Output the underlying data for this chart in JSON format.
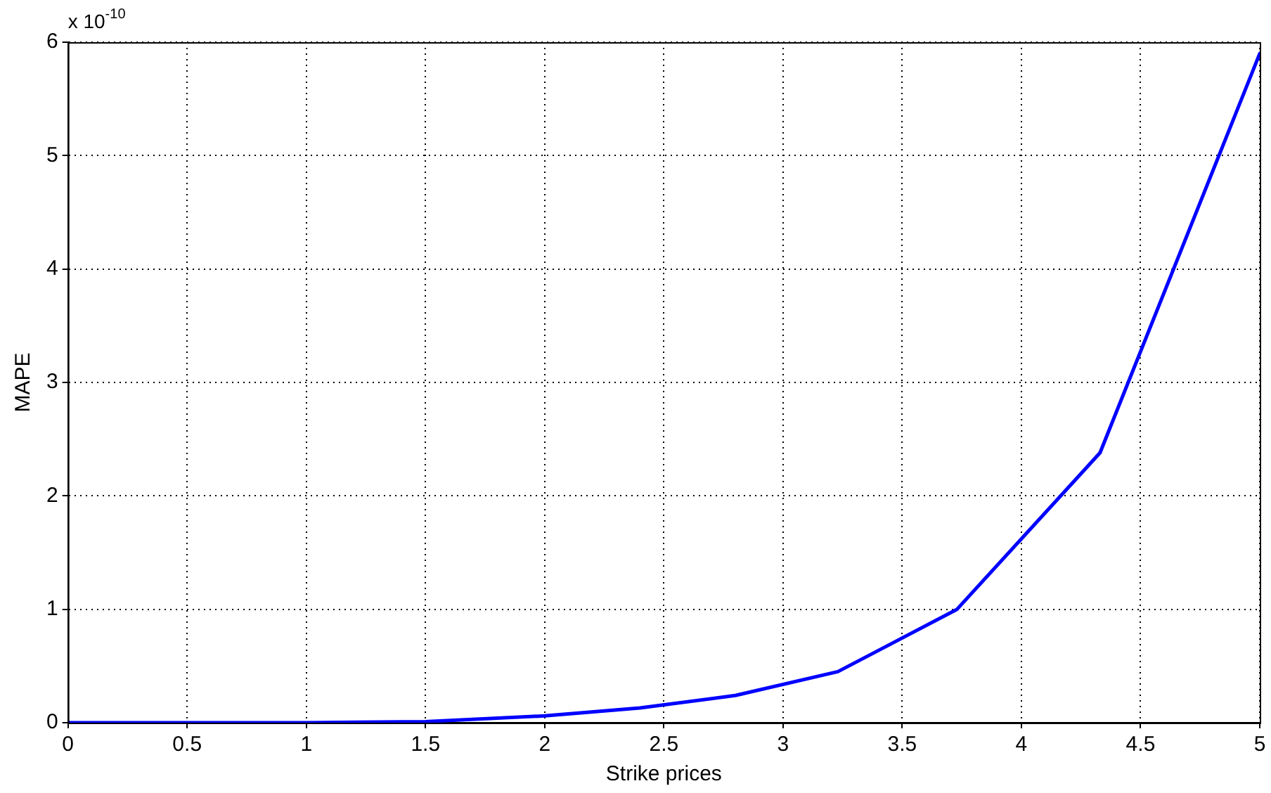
{
  "chart_data": {
    "type": "line",
    "xlabel": "Strike prices",
    "ylabel": "MAPE",
    "annotations": [
      "x 10$^{-10}$"
    ],
    "x": [
      0,
      0.5,
      1,
      1.5,
      2,
      2.4,
      2.8,
      3.23,
      3.73,
      4.33,
      5
    ],
    "series": [
      {
        "color": "#0000ff",
        "values": [
          0,
          0,
          0,
          0.01,
          0.06,
          0.13,
          0.24,
          0.45,
          1.0,
          2.38,
          5.9
        ]
      }
    ],
    "xlim": [
      0,
      5
    ],
    "xticks": [
      0,
      0.5,
      1,
      1.5,
      2,
      2.5,
      3,
      3.5,
      4,
      4.5,
      5
    ],
    "ylim": [
      0,
      6
    ],
    "yticks": [
      0,
      1,
      2,
      3,
      4,
      5,
      6
    ],
    "grid": true,
    "legend": false,
    "marker": "none",
    "line_style": "solid"
  }
}
